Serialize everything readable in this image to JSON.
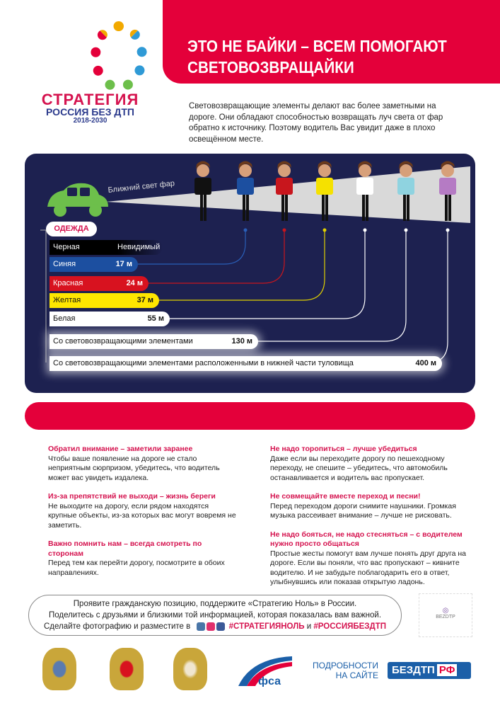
{
  "header": {
    "title": "ЭТО НЕ БАЙКИ – ВСЕМ ПОМОГАЮТ СВЕТОВОЗВРАЩАЙКИ"
  },
  "logo": {
    "line1": "СТРАТЕГИЯ",
    "line2": "РОССИЯ БЕЗ ДТП",
    "line3": "2018-2030"
  },
  "intro": "Световозвращающие элементы делают вас более заметными на дороге. Они обладают способностью возвращать луч света от фар обратно к источнику. Поэтому водитель Вас увидит даже в плохо освещённом месте.",
  "panel": {
    "beam_label": "Ближний свет фар",
    "clothing_header": "ОДЕЖДА",
    "rows": [
      {
        "label": "Черная",
        "value": "Невидимый",
        "color": "#000000"
      },
      {
        "label": "Синяя",
        "value": "17 м",
        "color": "#1c4fa0"
      },
      {
        "label": "Красная",
        "value": "24 м",
        "color": "#d8121f"
      },
      {
        "label": "Желтая",
        "value": "37 м",
        "color": "#ffe600"
      },
      {
        "label": "Белая",
        "value": "55 м",
        "color": "#ffffff"
      },
      {
        "label": "Со световозвращающими элементами",
        "value": "130 м",
        "color": "#ffffff"
      },
      {
        "label": "Со световозвращающими элементами расположенными в нижней части туловища",
        "value": "400 м",
        "color": "#ffffff"
      }
    ],
    "shirt_colors": [
      "#111111",
      "#1c4fa0",
      "#c8161d",
      "#f5e100",
      "#ffffff",
      "#8fd3e0",
      "#b57bc4"
    ]
  },
  "tips": {
    "left": [
      {
        "title": "Обратил внимание – заметили заранее",
        "text": "Чтобы ваше появление на дороге не стало неприятным сюрпризом, убедитесь, что водитель может вас увидеть издалека."
      },
      {
        "title": "Из-за препятствий не выходи – жизнь береги",
        "text": "Не выходите на дорогу, если рядом находятся крупные объекты, из-за которых вас могут вовремя не заметить."
      },
      {
        "title": "Важно помнить нам – всегда смотреть по сторонам",
        "text": "Перед тем как перейти дорогу, посмотрите в обоих направлениях."
      }
    ],
    "right": [
      {
        "title": "Не надо торопиться – лучше убедиться",
        "text": "Даже если вы переходите дорогу по пешеходному переходу, не спешите – убедитесь, что автомобиль останавливается и водитель вас пропускает."
      },
      {
        "title": "Не совмещайте вместе переход и песни!",
        "text": "Перед переходом дороги снимите наушники. Громкая музыка рассеивает внимание – лучше не рисковать."
      },
      {
        "title": "Не надо бояться, не надо стесняться – с водителем нужно просто общаться",
        "text": "Простые жесты помогут вам лучше понять друг друга на дороге. Если вы поняли, что вас пропускают – кивните водителю. И не забудьте поблагодарить его в ответ, улыбнувшись или показав открытую ладонь."
      }
    ]
  },
  "cta": {
    "line1": "Проявите гражданскую позицию, поддержите «Стратегию Ноль» в России.",
    "line2": "Поделитесь с друзьями и близкими той информацией, которая показалась вам важной.",
    "line3": "Сделайте фотографию и разместите в",
    "hashtag1": "#СТРАТЕГИЯНОЛЬ",
    "and": "и",
    "hashtag2": "#РОССИЯБЕЗДТП"
  },
  "qr": {
    "label": "BEZDTP"
  },
  "footer": {
    "more": "ПОДРОБНОСТИ НА САЙТЕ",
    "site": "БЕЗДТП",
    "site_suffix": "РФ",
    "fsa": "фса"
  },
  "colors": {
    "accent": "#e4003a",
    "panel": "#1d2150",
    "car": "#6dbf4b"
  }
}
